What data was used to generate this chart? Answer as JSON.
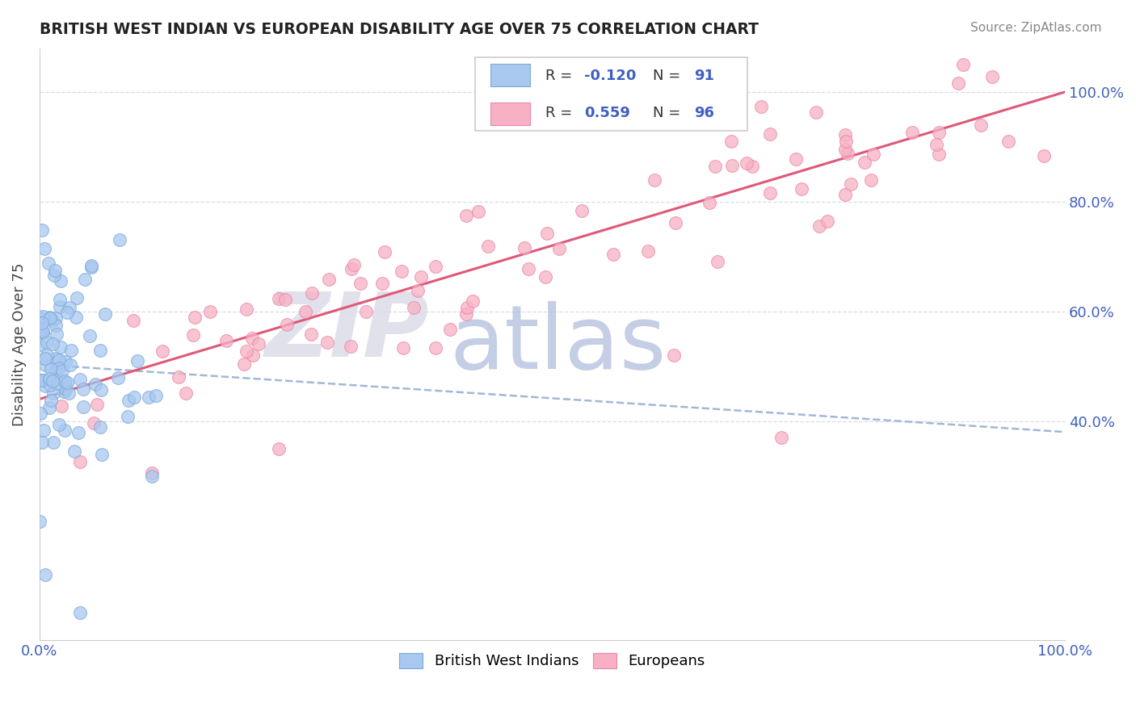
{
  "title": "BRITISH WEST INDIAN VS EUROPEAN DISABILITY AGE OVER 75 CORRELATION CHART",
  "source": "Source: ZipAtlas.com",
  "ylabel": "Disability Age Over 75",
  "color_bwi_fill": "#a8c8f0",
  "color_bwi_edge": "#7aaad8",
  "color_eur_fill": "#f8b0c4",
  "color_eur_edge": "#e888a8",
  "color_trendline_bwi": "#a0b8d8",
  "color_trendline_eur": "#e05878",
  "watermark_zip": "ZIP",
  "watermark_atlas": "atlas",
  "watermark_color_zip": "#d8d8e8",
  "watermark_color_atlas": "#a8b8d8",
  "legend_box_color": "#f0f0f0",
  "legend_border_color": "#cccccc",
  "grid_color": "#d8dce8",
  "tick_color": "#4060c0",
  "title_color": "#222222",
  "source_color": "#888888",
  "ylim_low": 0.0,
  "ylim_high": 1.08,
  "ytick_positions": [
    0.4,
    0.6,
    0.8,
    1.0
  ],
  "ytick_labels": [
    "40.0%",
    "60.0%",
    "80.0%",
    "100.0%"
  ],
  "xtick_positions": [
    0.0,
    1.0
  ],
  "xtick_labels": [
    "0.0%",
    "100.0%"
  ],
  "bwi_trend": [
    0.0,
    0.503,
    1.0,
    0.38
  ],
  "eur_trend": [
    0.0,
    0.44,
    1.0,
    1.0
  ]
}
